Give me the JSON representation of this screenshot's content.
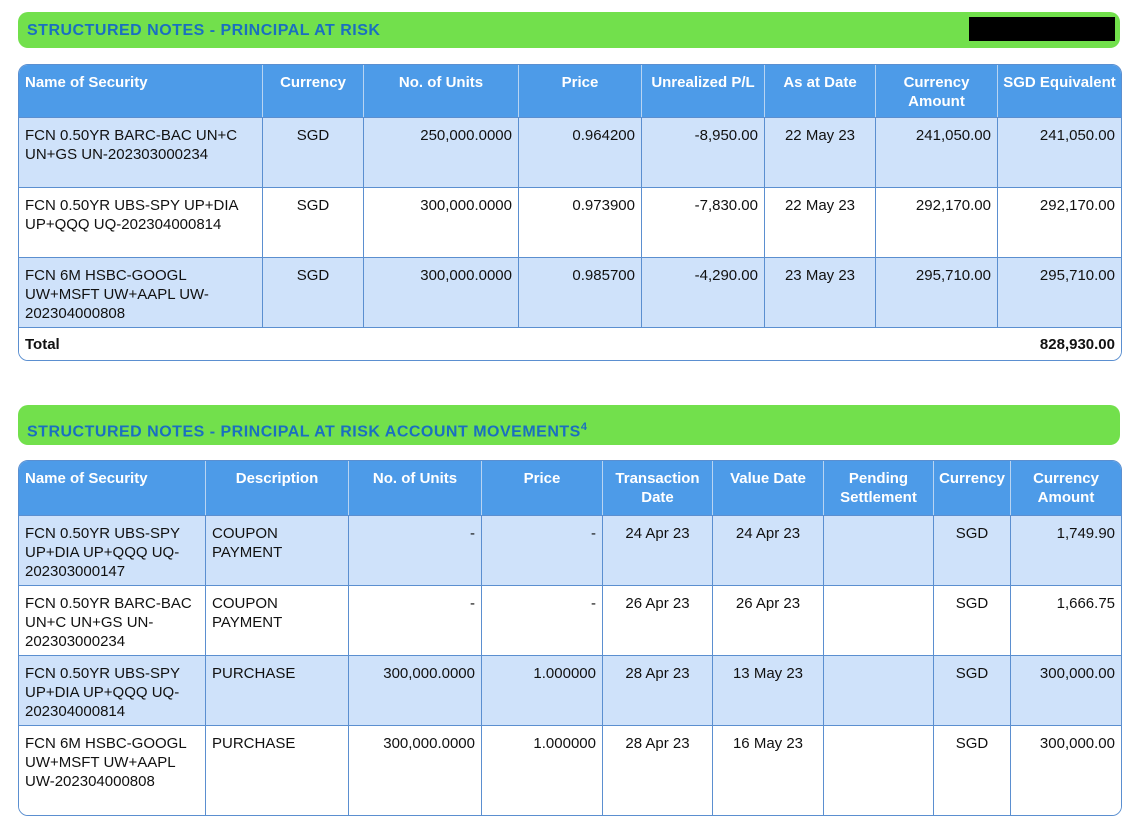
{
  "section1": {
    "title": "STRUCTURED NOTES - PRINCIPAL AT RISK",
    "headers": [
      "Name of Security",
      "Currency",
      "No. of Units",
      "Price",
      "Unrealized P/L",
      "As at Date",
      "Currency Amount",
      "SGD Equivalent"
    ],
    "rows": [
      [
        "FCN 0.50YR BARC-BAC UN+C UN+GS UN-202303000234",
        "SGD",
        "250,000.0000",
        "0.964200",
        "-8,950.00",
        "22 May 23",
        "241,050.00",
        "241,050.00"
      ],
      [
        "FCN 0.50YR UBS-SPY UP+DIA UP+QQQ UQ-202304000814",
        "SGD",
        "300,000.0000",
        "0.973900",
        "-7,830.00",
        "22 May 23",
        "292,170.00",
        "292,170.00"
      ],
      [
        "FCN 6M HSBC-GOOGL UW+MSFT UW+AAPL UW-202304000808",
        "SGD",
        "300,000.0000",
        "0.985700",
        "-4,290.00",
        "23 May 23",
        "295,710.00",
        "295,710.00"
      ]
    ],
    "total_label": "Total",
    "total_value": "828,930.00"
  },
  "section2": {
    "title": "STRUCTURED NOTES - PRINCIPAL AT RISK ACCOUNT MOVEMENTS",
    "footnote": "4",
    "headers": [
      "Name of Security",
      "Description",
      "No. of Units",
      "Price",
      "Transaction Date",
      "Value Date",
      "Pending Settlement",
      "Currency",
      "Currency Amount"
    ],
    "rows": [
      [
        "FCN 0.50YR UBS-SPY UP+DIA UP+QQQ UQ-202303000147",
        "COUPON PAYMENT",
        "-",
        "-",
        "24 Apr 23",
        "24 Apr 23",
        "",
        "SGD",
        "1,749.90"
      ],
      [
        "FCN 0.50YR BARC-BAC UN+C UN+GS UN-202303000234",
        "COUPON PAYMENT",
        "-",
        "-",
        "26 Apr 23",
        "26 Apr 23",
        "",
        "SGD",
        "1,666.75"
      ],
      [
        "FCN 0.50YR UBS-SPY UP+DIA UP+QQQ UQ-202304000814",
        "PURCHASE",
        "300,000.0000",
        "1.000000",
        "28 Apr 23",
        "13 May 23",
        "",
        "SGD",
        "300,000.00"
      ],
      [
        "FCN 6M HSBC-GOOGL UW+MSFT UW+AAPL UW-202304000808",
        "PURCHASE",
        "300,000.0000",
        "1.000000",
        "28 Apr 23",
        "16 May 23",
        "",
        "SGD",
        "300,000.00"
      ]
    ]
  }
}
